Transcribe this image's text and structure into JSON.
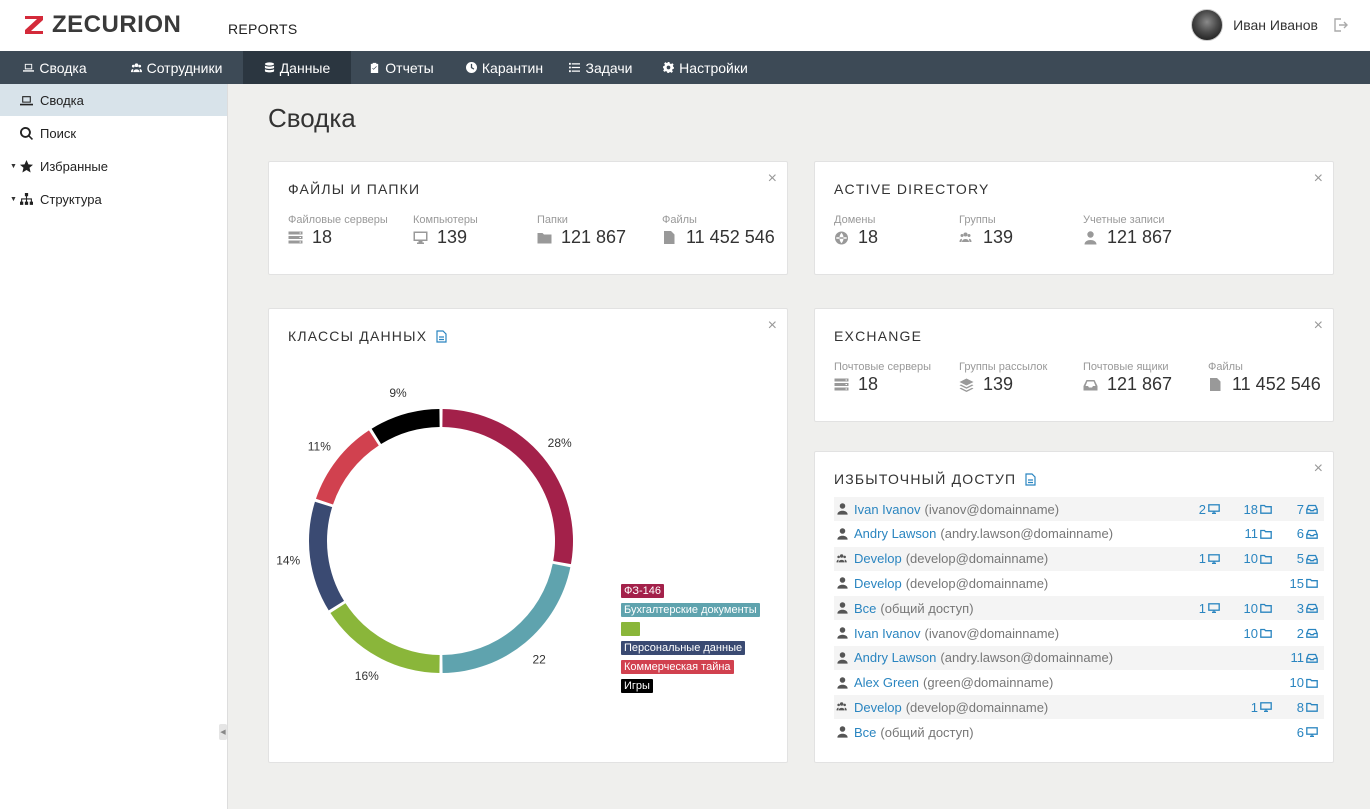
{
  "header": {
    "logo_text": "ZECURION",
    "section": "REPORTS",
    "user_name": "Иван Иванов"
  },
  "nav": [
    {
      "label": "Сводка",
      "icon": "laptop-icon"
    },
    {
      "label": "Сотрудники",
      "icon": "users-icon"
    },
    {
      "label": "Данные",
      "icon": "database-icon",
      "active": true
    },
    {
      "label": "Отчеты",
      "icon": "clipboard-icon"
    },
    {
      "label": "Карантин",
      "icon": "clock-icon"
    },
    {
      "label": "Задачи",
      "icon": "list-icon"
    },
    {
      "label": "Настройки",
      "icon": "gear-icon"
    }
  ],
  "sidebar": [
    {
      "label": "Сводка",
      "icon": "laptop-icon",
      "active": true
    },
    {
      "label": "Поиск",
      "icon": "search-icon"
    },
    {
      "label": "Избранные",
      "icon": "star-icon",
      "expandable": true
    },
    {
      "label": "Структура",
      "icon": "sitemap-icon",
      "expandable": true
    }
  ],
  "page_title": "Сводка",
  "files_card": {
    "title": "Файлы и папки",
    "stats": [
      {
        "label": "Файловые серверы",
        "value": "18",
        "icon": "server-icon"
      },
      {
        "label": "Компьютеры",
        "value": "139",
        "icon": "monitor-icon"
      },
      {
        "label": "Папки",
        "value": "121 867",
        "icon": "folder-icon"
      },
      {
        "label": "Файлы",
        "value": "11 452 546",
        "icon": "file-icon"
      }
    ]
  },
  "ad_card": {
    "title": "Active Directory",
    "stats": [
      {
        "label": "Домены",
        "value": "18",
        "icon": "globe-icon"
      },
      {
        "label": "Группы",
        "value": "139",
        "icon": "users-icon"
      },
      {
        "label": "Учетные записи",
        "value": "121 867",
        "icon": "user-icon"
      }
    ]
  },
  "exchange_card": {
    "title": "Exchange",
    "stats": [
      {
        "label": "Почтовые серверы",
        "value": "18",
        "icon": "server-icon"
      },
      {
        "label": "Группы рассылок",
        "value": "139",
        "icon": "layers-icon"
      },
      {
        "label": "Почтовые ящики",
        "value": "121 867",
        "icon": "inbox-icon"
      },
      {
        "label": "Файлы",
        "value": "11 452 546",
        "icon": "file-icon"
      }
    ]
  },
  "classes_card": {
    "title": "Классы данных"
  },
  "chart_data": {
    "type": "pie",
    "donut": true,
    "slices": [
      {
        "label": "28%",
        "value": 28,
        "color": "#a3214a",
        "series": "ФЗ-146"
      },
      {
        "label": "22",
        "value": 22,
        "color": "#5fa3ae",
        "series": "Бухгалтерские документы"
      },
      {
        "label": "16%",
        "value": 16,
        "color": "#8ab63a",
        "series": ""
      },
      {
        "label": "14%",
        "value": 14,
        "color": "#3a4a72",
        "series": "Персональные данные"
      },
      {
        "label": "11%",
        "value": 11,
        "color": "#d1414f",
        "series": "Коммерческая тайна"
      },
      {
        "label": "9%",
        "value": 9,
        "color": "#000000",
        "series": "Игры"
      }
    ],
    "legend": [
      {
        "label": "ФЗ-146",
        "color": "#a3214a"
      },
      {
        "label": "Бухгалтерские документы",
        "color": "#5fa3ae"
      },
      {
        "label": "",
        "color": "#8ab63a"
      },
      {
        "label": "Персональные данные",
        "color": "#3a4a72"
      },
      {
        "label": "Коммерческая тайна",
        "color": "#d1414f"
      },
      {
        "label": "Игры",
        "color": "#000000"
      }
    ],
    "legend_position": "right"
  },
  "access_card": {
    "title": "Избыточный доступ",
    "rows": [
      {
        "icon": "user-icon",
        "name": "Ivan Ivanov",
        "email": "(ivanov@domainname)",
        "computers": "2",
        "folders": "18",
        "mailboxes": "7"
      },
      {
        "icon": "user-icon",
        "name": "Andry Lawson",
        "email": "(andry.lawson@domainname)",
        "computers": "",
        "folders": "11",
        "mailboxes": "6"
      },
      {
        "icon": "users-icon",
        "name": "Develop",
        "email": "(develop@domainname)",
        "computers": "1",
        "folders": "10",
        "mailboxes": "5"
      },
      {
        "icon": "user-icon",
        "name": "Develop",
        "email": "(develop@domainname)",
        "computers": "",
        "folders": "",
        "mailboxes": "",
        "last": "15",
        "last_icon": "folder-icon"
      },
      {
        "icon": "user-icon",
        "name": "Все",
        "email": "(общий доступ)",
        "computers": "1",
        "folders": "10",
        "mailboxes": "3"
      },
      {
        "icon": "user-icon",
        "name": "Ivan Ivanov",
        "email": "(ivanov@domainname)",
        "computers": "",
        "folders": "10",
        "mailboxes": "2"
      },
      {
        "icon": "user-icon",
        "name": "Andry Lawson",
        "email": "(andry.lawson@domainname)",
        "computers": "",
        "folders": "",
        "mailboxes": "11"
      },
      {
        "icon": "user-icon",
        "name": "Alex Green",
        "email": "(green@domainname)",
        "computers": "",
        "folders": "",
        "mailboxes": "",
        "last": "10",
        "last_icon": "folder-icon"
      },
      {
        "icon": "users-icon",
        "name": "Develop",
        "email": "(develop@domainname)",
        "computers": "",
        "folders": "1",
        "folders_icon": "monitor-icon",
        "mailboxes": "",
        "last": "8",
        "last_icon": "folder-icon"
      },
      {
        "icon": "user-icon",
        "name": "Все",
        "email": "(общий доступ)",
        "computers": "",
        "folders": "",
        "mailboxes": "",
        "last": "6",
        "last_icon": "monitor-icon"
      }
    ]
  }
}
